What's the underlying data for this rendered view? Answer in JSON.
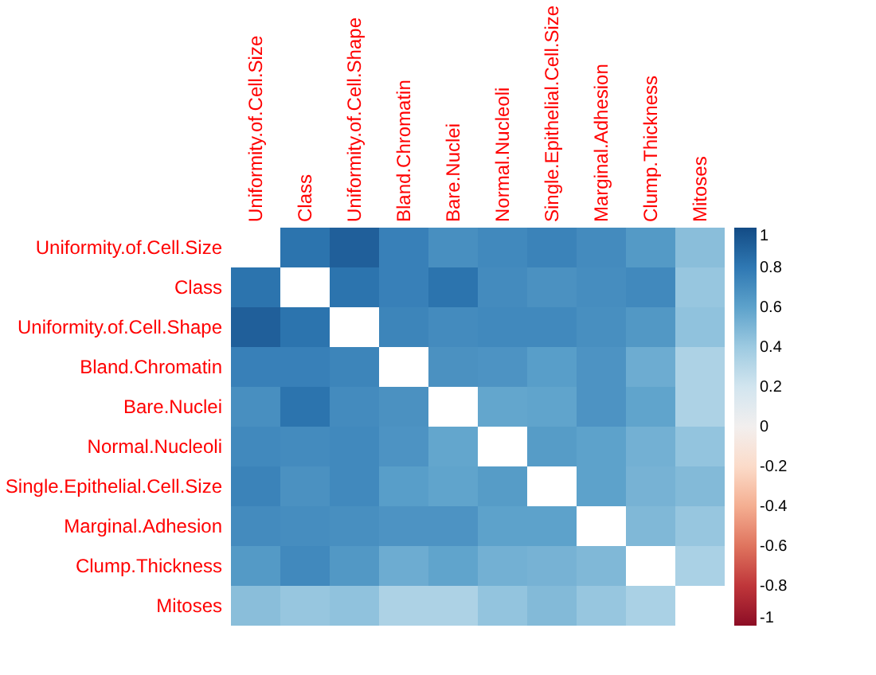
{
  "chart_data": {
    "type": "heatmap",
    "categories": [
      "Uniformity.of.Cell.Size",
      "Class",
      "Uniformity.of.Cell.Shape",
      "Bland.Chromatin",
      "Bare.Nuclei",
      "Normal.Nucleoli",
      "Single.Epithelial.Cell.Size",
      "Marginal.Adhesion",
      "Clump.Thickness",
      "Mitoses"
    ],
    "y_categories": [
      "Uniformity.of.Cell.Size",
      "Class",
      "Uniformity.of.Cell.Shape",
      "Bland.Chromatin",
      "Bare.Nuclei",
      "Normal.Nucleoli",
      "Single.Epithelial.Cell.Size",
      "Marginal.Adhesion",
      "Clump.Thickness",
      "Mitoses"
    ],
    "cells": [
      [
        null,
        0.82,
        0.91,
        0.76,
        0.69,
        0.72,
        0.75,
        0.71,
        0.64,
        0.46
      ],
      [
        0.82,
        null,
        0.82,
        0.76,
        0.82,
        0.71,
        0.68,
        0.7,
        0.72,
        0.42
      ],
      [
        0.91,
        0.82,
        null,
        0.74,
        0.71,
        0.72,
        0.72,
        0.69,
        0.65,
        0.44
      ],
      [
        0.76,
        0.76,
        0.74,
        null,
        0.68,
        0.67,
        0.62,
        0.67,
        0.55,
        0.34
      ],
      [
        0.69,
        0.82,
        0.71,
        0.68,
        null,
        0.58,
        0.59,
        0.67,
        0.59,
        0.34
      ],
      [
        0.72,
        0.71,
        0.72,
        0.67,
        0.58,
        null,
        0.63,
        0.6,
        0.53,
        0.43
      ],
      [
        0.75,
        0.68,
        0.72,
        0.62,
        0.59,
        0.63,
        null,
        0.6,
        0.52,
        0.48
      ],
      [
        0.71,
        0.7,
        0.69,
        0.67,
        0.67,
        0.6,
        0.6,
        null,
        0.49,
        0.42
      ],
      [
        0.64,
        0.72,
        0.65,
        0.55,
        0.59,
        0.53,
        0.52,
        0.49,
        null,
        0.35
      ],
      [
        0.46,
        0.42,
        0.44,
        0.34,
        0.34,
        0.43,
        0.48,
        0.42,
        0.35,
        null
      ]
    ],
    "clim": [
      -1,
      1
    ],
    "cticks": [
      -1,
      -0.8,
      -0.6,
      -0.4,
      -0.2,
      0,
      0.2,
      0.4,
      0.6,
      0.8,
      1
    ]
  }
}
